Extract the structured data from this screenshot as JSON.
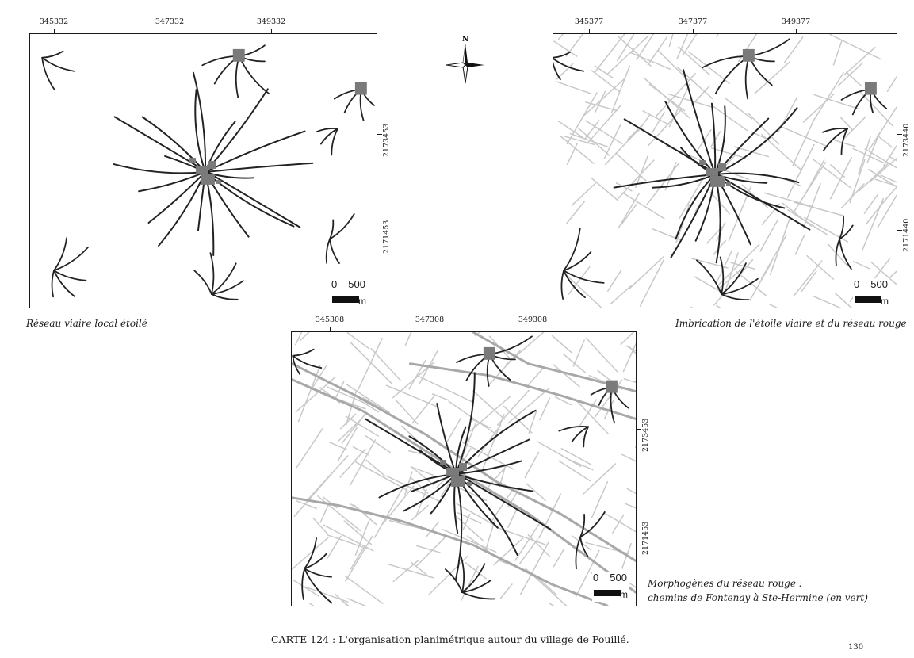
{
  "maps": [
    {
      "caption": "Réseau viaire local étoilé",
      "top_coords": [
        "345332",
        "347332",
        "349332"
      ],
      "right_coords": [
        "2173453",
        "2171453"
      ],
      "scale": {
        "zero": "0",
        "max": "500",
        "unit": "m"
      },
      "layers": [
        "star"
      ]
    },
    {
      "caption": "Imbrication de l'étoile viaire et du réseau rouge",
      "top_coords": [
        "345377",
        "347377",
        "349377"
      ],
      "right_coords": [
        "2173440",
        "2171440"
      ],
      "scale": {
        "zero": "0",
        "max": "500",
        "unit": "m"
      },
      "layers": [
        "star",
        "red-network"
      ]
    },
    {
      "caption_line1": "Morphogènes du réseau rouge :",
      "caption_line2": "chemins de Fontenay à Ste-Hermine (en vert)",
      "top_coords": [
        "345308",
        "347308",
        "349308"
      ],
      "right_coords": [
        "2173453",
        "2171453"
      ],
      "scale": {
        "zero": "0",
        "max": "500",
        "unit": "m"
      },
      "layers": [
        "star",
        "red-network",
        "green-paths"
      ]
    }
  ],
  "compass": {
    "north": "N"
  },
  "figure_title": "CARTE 124 : L'organisation planimétrique autour du village de Pouillé.",
  "page_number": "130",
  "colors": {
    "star_roads": "#222222",
    "red_network": "#c8c8c8",
    "green_paths": "#a8a8a8",
    "settlement": "#7a7a7a"
  }
}
